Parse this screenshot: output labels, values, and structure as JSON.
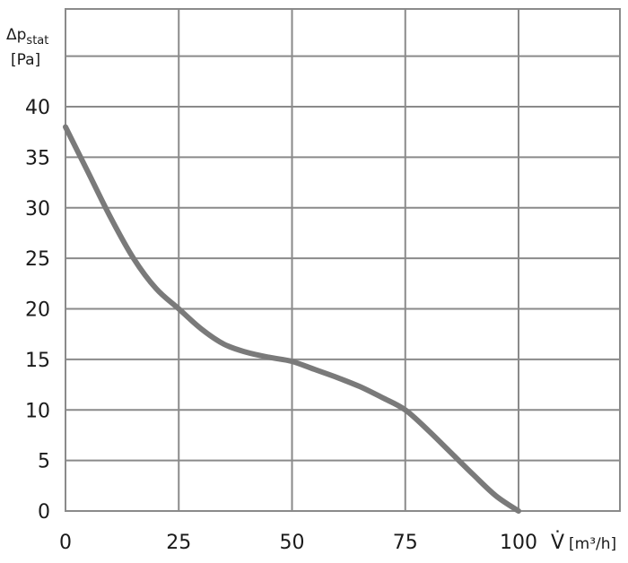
{
  "chart_data": {
    "type": "line",
    "xlabel_symbol": "V̇",
    "xlabel_unit": "[m³/h]",
    "ylabel_symbol": "Δp",
    "ylabel_subscript": "stat",
    "ylabel_unit": "[Pa]",
    "xlim": [
      0,
      100
    ],
    "ylim": [
      0,
      40
    ],
    "x_ticks": [
      "0",
      "25",
      "50",
      "75",
      "100"
    ],
    "y_ticks": [
      "0",
      "5",
      "10",
      "15",
      "20",
      "25",
      "30",
      "35",
      "40"
    ],
    "grid": true,
    "series": [
      {
        "color": "#7a7a7a",
        "x": [
          0,
          5,
          10,
          15,
          20,
          25,
          30,
          35,
          40,
          45,
          50,
          55,
          60,
          65,
          70,
          75,
          80,
          85,
          90,
          95,
          100
        ],
        "y": [
          38,
          33.5,
          29,
          25,
          22,
          20,
          18,
          16.5,
          15.7,
          15.2,
          14.8,
          14,
          13.2,
          12.3,
          11.2,
          10,
          8,
          5.8,
          3.6,
          1.5,
          0
        ]
      }
    ]
  }
}
